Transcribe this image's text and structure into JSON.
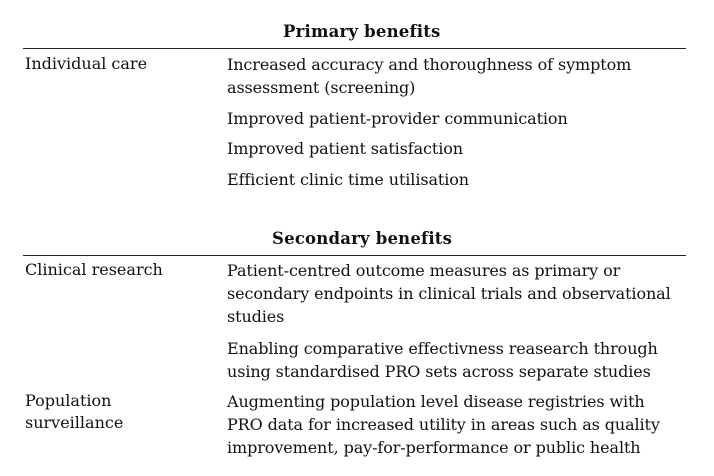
{
  "sections": [
    {
      "title": "Primary benefits",
      "rows": [
        {
          "label": "Individual care",
          "benefits": [
            {
              "lines": [
                "Increased accuracy and thoroughness of symptom",
                "assessment (screening)"
              ]
            },
            {
              "lines": [
                "Improved patient-provider communication"
              ]
            },
            {
              "lines": [
                "Improved patient satisfaction"
              ]
            },
            {
              "lines": [
                "Efficient clinic time utilisation"
              ]
            }
          ]
        }
      ]
    },
    {
      "title": "Secondary benefits",
      "rows": [
        {
          "label": "Clinical research",
          "benefits": [
            {
              "lines": [
                "Patient-centred outcome measures as primary or",
                "secondary endpoints in clinical trials and observational",
                "studies"
              ]
            },
            {
              "lines": [
                "Enabling comparative effectivness reasearch through",
                "using standardised PRO sets across separate studies"
              ]
            }
          ]
        },
        {
          "label_lines": [
            "Population",
            "surveillance"
          ],
          "benefits": [
            {
              "lines": [
                "Augmenting population level disease registries with",
                "PRO data for increased utility in areas such as quality",
                "improvement, pay-for-performance or public health"
              ]
            }
          ]
        }
      ]
    }
  ]
}
